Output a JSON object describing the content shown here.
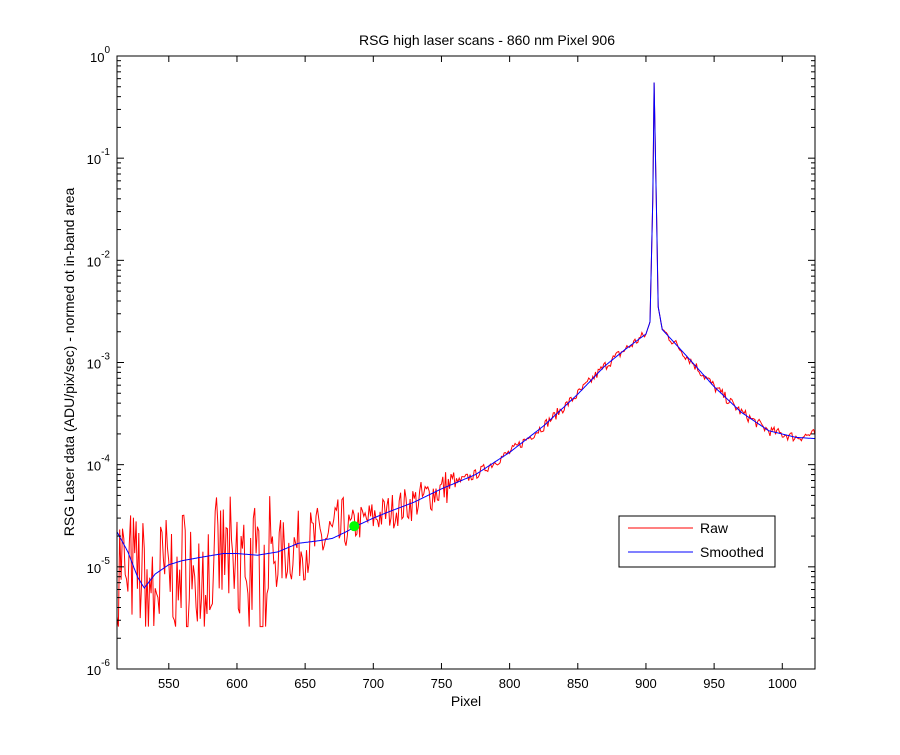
{
  "chart_data": {
    "type": "line",
    "title": "RSG high laser scans  - 860 nm    Pixel 906",
    "xlabel": "Pixel",
    "ylabel": "RSG Laser data (ADU/pix/sec) - normed ot in-band area",
    "xlim": [
      512,
      1024
    ],
    "ylim": [
      1e-06,
      1
    ],
    "yscale": "log",
    "x_ticks": [
      550,
      600,
      650,
      700,
      750,
      800,
      850,
      900,
      950,
      1000
    ],
    "y_ticks": [
      {
        "value": 1e-06,
        "base": "10",
        "exp": "-6"
      },
      {
        "value": 1e-05,
        "base": "10",
        "exp": "-5"
      },
      {
        "value": 0.0001,
        "base": "10",
        "exp": "-4"
      },
      {
        "value": 0.001,
        "base": "10",
        "exp": "-3"
      },
      {
        "value": 0.01,
        "base": "10",
        "exp": "-2"
      },
      {
        "value": 0.1,
        "base": "10",
        "exp": "-1"
      },
      {
        "value": 1,
        "base": "10",
        "exp": "0"
      }
    ],
    "grid": false,
    "legend_position": "lower-right",
    "series": [
      {
        "name": "Raw",
        "color": "#ff0000",
        "noisy": true,
        "x": [
          512,
          530,
          545,
          560,
          580,
          600,
          615,
          630,
          645,
          660,
          675,
          690,
          710,
          730,
          750,
          775,
          800,
          825,
          850,
          870,
          885,
          895,
          900,
          903,
          905,
          906,
          907,
          909,
          912,
          915,
          930,
          950,
          970,
          990,
          1010,
          1024
        ],
        "y": [
          1.3e-05,
          8e-06,
          8e-06,
          1.1e-05,
          1.2e-05,
          1.3e-05,
          1.2e-05,
          1.3e-05,
          1.6e-05,
          1.8e-05,
          2.1e-05,
          2.7e-05,
          3.4e-05,
          4.3e-05,
          5.8e-05,
          8e-05,
          0.000132,
          0.00024,
          0.00049,
          0.00093,
          0.00135,
          0.0017,
          0.0019,
          0.0025,
          0.04,
          0.55,
          0.1,
          0.0035,
          0.0021,
          0.0019,
          0.00115,
          0.00058,
          0.000325,
          0.000215,
          0.000185,
          0.0002
        ]
      },
      {
        "name": "Smoothed",
        "color": "#0000ff",
        "noisy": false,
        "x": [
          512,
          520,
          527,
          532,
          540,
          550,
          560,
          575,
          590,
          600,
          615,
          630,
          645,
          660,
          670,
          680,
          690,
          700,
          710,
          730,
          750,
          775,
          800,
          825,
          850,
          870,
          885,
          895,
          900,
          903,
          905,
          906,
          907,
          909,
          912,
          915,
          930,
          950,
          970,
          990,
          1010,
          1024
        ],
        "y": [
          2.2e-05,
          1.4e-05,
          8e-06,
          6.2e-06,
          8.5e-06,
          1.05e-05,
          1.15e-05,
          1.25e-05,
          1.35e-05,
          1.35e-05,
          1.3e-05,
          1.4e-05,
          1.7e-05,
          1.8e-05,
          1.9e-05,
          2.2e-05,
          2.6e-05,
          3e-05,
          3.4e-05,
          4.3e-05,
          5.8e-05,
          8e-05,
          0.000132,
          0.00024,
          0.00049,
          0.00093,
          0.00135,
          0.0017,
          0.0019,
          0.0025,
          0.04,
          0.55,
          0.1,
          0.0035,
          0.0021,
          0.0019,
          0.00115,
          0.00058,
          0.000325,
          0.000215,
          0.000185,
          0.00018
        ]
      }
    ],
    "markers": [
      {
        "x": 686,
        "y": 2.5e-05,
        "color": "#00ff00"
      }
    ]
  }
}
